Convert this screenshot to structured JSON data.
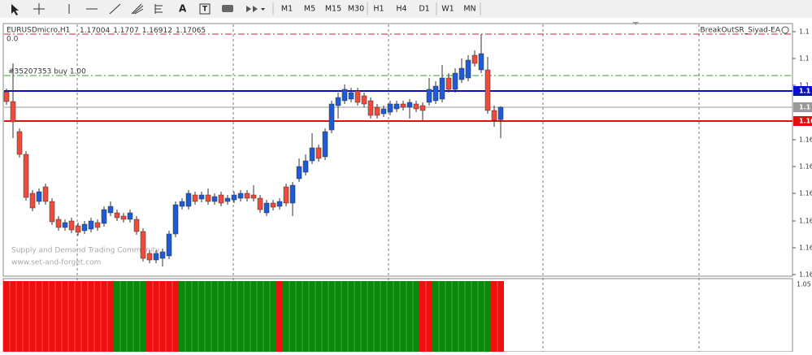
{
  "toolbar": {
    "text_tool": "A",
    "timeframes": [
      "M1",
      "M5",
      "M15",
      "M30",
      "H1",
      "H4",
      "D1",
      "W1",
      "MN"
    ]
  },
  "chart_data": {
    "type": "candlestick",
    "title": "EURUSDmicro,H1",
    "title_values": {
      "path_note_free": null
    },
    "subtitle": "0.0",
    "order_label": "#35207353 buy 1.00",
    "expert": "BreakOutSR_Siyad-EA",
    "watermark": [
      "Supply and Demand Trading Community",
      "www.set-and-forget.com"
    ],
    "up_color": "#1f5bd6",
    "down_color": "#f04a3a",
    "candles": [
      [
        1.17141,
        1.17157,
        1.17077,
        1.17093
      ],
      [
        1.17093,
        1.17281,
        1.16913,
        1.16993
      ],
      [
        1.16945,
        1.16961,
        1.16817,
        1.16833
      ],
      [
        1.16833,
        1.16849,
        1.16605,
        1.16621
      ],
      [
        1.16641,
        1.16657,
        1.16553,
        1.16569
      ],
      [
        1.16601,
        1.16665,
        1.16585,
        1.16649
      ],
      [
        1.16673,
        1.16689,
        1.16585,
        1.16601
      ],
      [
        1.16601,
        1.16617,
        1.16485,
        1.16501
      ],
      [
        1.16513,
        1.16529,
        1.16457,
        1.16473
      ],
      [
        1.16473,
        1.16513,
        1.16457,
        1.16497
      ],
      [
        1.16505,
        1.16521,
        1.16445,
        1.16461
      ],
      [
        1.16481,
        1.16497,
        1.16433,
        1.16449
      ],
      [
        1.16457,
        1.16505,
        1.16441,
        1.16489
      ],
      [
        1.16465,
        1.16521,
        1.16449,
        1.16505
      ],
      [
        1.16497,
        1.16513,
        1.16457,
        1.16473
      ],
      [
        1.16493,
        1.16577,
        1.16477,
        1.16561
      ],
      [
        1.16545,
        1.16601,
        1.16529,
        1.16577
      ],
      [
        1.16545,
        1.16561,
        1.16505,
        1.16521
      ],
      [
        1.16529,
        1.16545,
        1.16497,
        1.16513
      ],
      [
        1.16513,
        1.16561,
        1.16497,
        1.16545
      ],
      [
        1.16513,
        1.16529,
        1.16437,
        1.16453
      ],
      [
        1.16453,
        1.16469,
        1.16305,
        1.16321
      ],
      [
        1.16345,
        1.16361,
        1.16297,
        1.16313
      ],
      [
        1.16313,
        1.16361,
        1.16297,
        1.16345
      ],
      [
        1.16321,
        1.16369,
        1.16281,
        1.16353
      ],
      [
        1.16333,
        1.16457,
        1.16317,
        1.16441
      ],
      [
        1.16441,
        1.16601,
        1.16425,
        1.16585
      ],
      [
        1.16577,
        1.16617,
        1.16561,
        1.16601
      ],
      [
        1.16577,
        1.16657,
        1.16561,
        1.16641
      ],
      [
        1.16633,
        1.16649,
        1.16585,
        1.16601
      ],
      [
        1.16613,
        1.16649,
        1.16597,
        1.16633
      ],
      [
        1.16633,
        1.16665,
        1.16585,
        1.16601
      ],
      [
        1.16601,
        1.16641,
        1.16585,
        1.16625
      ],
      [
        1.16633,
        1.16649,
        1.16577,
        1.16593
      ],
      [
        1.16601,
        1.16633,
        1.16585,
        1.16617
      ],
      [
        1.16609,
        1.16649,
        1.16593,
        1.16633
      ],
      [
        1.16617,
        1.16657,
        1.16601,
        1.16641
      ],
      [
        1.16641,
        1.16657,
        1.16601,
        1.16617
      ],
      [
        1.16633,
        1.16681,
        1.16601,
        1.16617
      ],
      [
        1.16617,
        1.16633,
        1.16545,
        1.16561
      ],
      [
        1.16545,
        1.16609,
        1.16529,
        1.16593
      ],
      [
        1.16593,
        1.16609,
        1.16557,
        1.16573
      ],
      [
        1.16577,
        1.16617,
        1.16561,
        1.16601
      ],
      [
        1.16673,
        1.16689,
        1.16577,
        1.16593
      ],
      [
        1.16593,
        1.16697,
        1.16529,
        1.16681
      ],
      [
        1.16713,
        1.16813,
        1.16697,
        1.16773
      ],
      [
        1.16745,
        1.16833,
        1.16729,
        1.16801
      ],
      [
        1.16801,
        1.16937,
        1.16785,
        1.16865
      ],
      [
        1.16865,
        1.16881,
        1.16797,
        1.16813
      ],
      [
        1.16821,
        1.16961,
        1.16805,
        1.16945
      ],
      [
        1.16953,
        1.17097,
        1.16937,
        1.17081
      ],
      [
        1.17073,
        1.17137,
        1.17009,
        1.17113
      ],
      [
        1.17097,
        1.17177,
        1.17081,
        1.17153
      ],
      [
        1.17105,
        1.17161,
        1.17089,
        1.17137
      ],
      [
        1.17145,
        1.17161,
        1.17073,
        1.17089
      ],
      [
        1.17121,
        1.17137,
        1.17065,
        1.17081
      ],
      [
        1.17097,
        1.17113,
        1.17009,
        1.17025
      ],
      [
        1.17065,
        1.17081,
        1.17009,
        1.17025
      ],
      [
        1.17033,
        1.17073,
        1.17017,
        1.17057
      ],
      [
        1.17041,
        1.17097,
        1.17025,
        1.17081
      ],
      [
        1.17057,
        1.17097,
        1.17041,
        1.17081
      ],
      [
        1.17081,
        1.17097,
        1.17049,
        1.17065
      ],
      [
        1.17065,
        1.17105,
        1.17009,
        1.17089
      ],
      [
        1.17081,
        1.17097,
        1.17041,
        1.17057
      ],
      [
        1.17073,
        1.17089,
        1.17001,
        1.17049
      ],
      [
        1.17089,
        1.17209,
        1.17073,
        1.17153
      ],
      [
        1.17097,
        1.17193,
        1.17081,
        1.17169
      ],
      [
        1.17105,
        1.17273,
        1.17089,
        1.17209
      ],
      [
        1.17209,
        1.17233,
        1.17137,
        1.17153
      ],
      [
        1.17153,
        1.17257,
        1.17137,
        1.17233
      ],
      [
        1.17201,
        1.17305,
        1.17185,
        1.17257
      ],
      [
        1.17209,
        1.17321,
        1.17193,
        1.17297
      ],
      [
        1.17321,
        1.17345,
        1.17265,
        1.17281
      ],
      [
        1.17249,
        1.17425,
        1.17233,
        1.17329
      ],
      [
        1.17249,
        1.17313,
        1.17033,
        1.17049
      ],
      [
        1.17049,
        1.17073,
        1.16969,
        1.17001
      ],
      [
        1.17004,
        1.1707,
        1.16912,
        1.17065
      ]
    ],
    "ylim": [
      1.16233,
      1.17473
    ],
    "yticks": [
      {
        "value": 1.17437,
        "label": "1.1"
      },
      {
        "value": 1.17305,
        "label": "1.1"
      },
      {
        "value": 1.17173,
        "label": "1.1"
      },
      {
        "value": 1.16905,
        "label": "1.16"
      },
      {
        "value": 1.16773,
        "label": "1.16"
      },
      {
        "value": 1.16641,
        "label": "1.16"
      },
      {
        "value": 1.16505,
        "label": "1.16"
      },
      {
        "value": 1.16373,
        "label": "1.16"
      },
      {
        "value": 1.16241,
        "label": "1.16"
      }
    ],
    "levels": [
      {
        "value": 1.17425,
        "color": "#d42020",
        "style": "dashdot"
      },
      {
        "value": 1.17221,
        "color": "#30a030",
        "style": "dashdot"
      },
      {
        "value": 1.17145,
        "color": "#0a10c8",
        "style": "solid",
        "label": "1.1"
      },
      {
        "value": 1.17065,
        "color": "#9a9a9a",
        "style": "thin",
        "label": "1.1"
      },
      {
        "value": 1.16997,
        "color": "#e01010",
        "style": "solid",
        "label": "1.16"
      }
    ],
    "indicator": {
      "axis_label": "1.05",
      "segments": [
        {
          "color": "#f01010",
          "bars": 17
        },
        {
          "color": "#0a8a0a",
          "bars": 5
        },
        {
          "color": "#f01010",
          "bars": 5
        },
        {
          "color": "#0a8a0a",
          "bars": 15
        },
        {
          "color": "#f01010",
          "bars": 1
        },
        {
          "color": "#0a8a0a",
          "bars": 21
        },
        {
          "color": "#f01010",
          "bars": 2
        },
        {
          "color": "#0a8a0a",
          "bars": 9
        },
        {
          "color": "#f01010",
          "bars": 2
        }
      ]
    }
  }
}
